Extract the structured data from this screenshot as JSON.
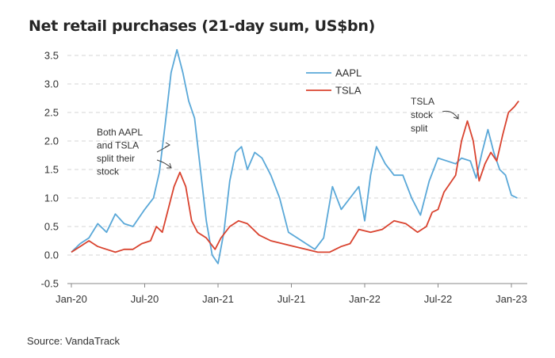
{
  "chart_data": {
    "type": "line",
    "title": "Net retail purchases (21-day sum, US$bn)",
    "source": "Source: VandaTrack",
    "y_ticks": [
      "3.5",
      "3.0",
      "2.5",
      "2.0",
      "1.5",
      "1.0",
      "0.5",
      "0.0",
      "-0.5"
    ],
    "x_ticks": [
      "Jan-20",
      "Jul-20",
      "Jan-21",
      "Jul-21",
      "Jan-22",
      "Jul-22",
      "Jan-23"
    ],
    "ylim": [
      -0.5,
      3.6
    ],
    "grid": true,
    "legend_position": "top-center",
    "series": [
      {
        "name": "AAPL",
        "color": "#5AA8D8",
        "points": [
          [
            2020.0,
            0.05
          ],
          [
            2020.06,
            0.2
          ],
          [
            2020.12,
            0.3
          ],
          [
            2020.18,
            0.55
          ],
          [
            2020.24,
            0.4
          ],
          [
            2020.3,
            0.72
          ],
          [
            2020.36,
            0.55
          ],
          [
            2020.42,
            0.5
          ],
          [
            2020.5,
            0.8
          ],
          [
            2020.56,
            1.0
          ],
          [
            2020.6,
            1.45
          ],
          [
            2020.64,
            2.3
          ],
          [
            2020.68,
            3.2
          ],
          [
            2020.72,
            3.6
          ],
          [
            2020.76,
            3.2
          ],
          [
            2020.8,
            2.7
          ],
          [
            2020.84,
            2.4
          ],
          [
            2020.88,
            1.5
          ],
          [
            2020.92,
            0.6
          ],
          [
            2020.96,
            0.0
          ],
          [
            2021.0,
            -0.15
          ],
          [
            2021.04,
            0.4
          ],
          [
            2021.08,
            1.3
          ],
          [
            2021.12,
            1.8
          ],
          [
            2021.16,
            1.9
          ],
          [
            2021.2,
            1.5
          ],
          [
            2021.25,
            1.8
          ],
          [
            2021.3,
            1.7
          ],
          [
            2021.36,
            1.4
          ],
          [
            2021.42,
            1.0
          ],
          [
            2021.48,
            0.4
          ],
          [
            2021.54,
            0.3
          ],
          [
            2021.6,
            0.2
          ],
          [
            2021.66,
            0.1
          ],
          [
            2021.72,
            0.3
          ],
          [
            2021.78,
            1.2
          ],
          [
            2021.84,
            0.8
          ],
          [
            2021.9,
            1.0
          ],
          [
            2021.96,
            1.2
          ],
          [
            2022.0,
            0.6
          ],
          [
            2022.04,
            1.4
          ],
          [
            2022.08,
            1.9
          ],
          [
            2022.14,
            1.6
          ],
          [
            2022.2,
            1.4
          ],
          [
            2022.26,
            1.4
          ],
          [
            2022.32,
            1.0
          ],
          [
            2022.38,
            0.7
          ],
          [
            2022.44,
            1.3
          ],
          [
            2022.5,
            1.7
          ],
          [
            2022.56,
            1.65
          ],
          [
            2022.62,
            1.6
          ],
          [
            2022.66,
            1.7
          ],
          [
            2022.72,
            1.65
          ],
          [
            2022.76,
            1.35
          ],
          [
            2022.8,
            1.8
          ],
          [
            2022.84,
            2.2
          ],
          [
            2022.88,
            1.8
          ],
          [
            2022.92,
            1.5
          ],
          [
            2022.96,
            1.4
          ],
          [
            2023.0,
            1.05
          ],
          [
            2023.04,
            1.0
          ]
        ]
      },
      {
        "name": "TSLA",
        "color": "#D9432F",
        "points": [
          [
            2020.0,
            0.05
          ],
          [
            2020.06,
            0.15
          ],
          [
            2020.12,
            0.25
          ],
          [
            2020.18,
            0.15
          ],
          [
            2020.24,
            0.1
          ],
          [
            2020.3,
            0.05
          ],
          [
            2020.36,
            0.1
          ],
          [
            2020.42,
            0.1
          ],
          [
            2020.48,
            0.2
          ],
          [
            2020.54,
            0.25
          ],
          [
            2020.58,
            0.5
          ],
          [
            2020.62,
            0.4
          ],
          [
            2020.66,
            0.8
          ],
          [
            2020.7,
            1.2
          ],
          [
            2020.74,
            1.45
          ],
          [
            2020.78,
            1.2
          ],
          [
            2020.82,
            0.6
          ],
          [
            2020.86,
            0.4
          ],
          [
            2020.92,
            0.3
          ],
          [
            2020.98,
            0.1
          ],
          [
            2021.02,
            0.3
          ],
          [
            2021.08,
            0.5
          ],
          [
            2021.14,
            0.6
          ],
          [
            2021.2,
            0.55
          ],
          [
            2021.28,
            0.35
          ],
          [
            2021.36,
            0.25
          ],
          [
            2021.44,
            0.2
          ],
          [
            2021.52,
            0.15
          ],
          [
            2021.6,
            0.1
          ],
          [
            2021.68,
            0.05
          ],
          [
            2021.76,
            0.05
          ],
          [
            2021.84,
            0.15
          ],
          [
            2021.9,
            0.2
          ],
          [
            2021.96,
            0.45
          ],
          [
            2022.04,
            0.4
          ],
          [
            2022.12,
            0.45
          ],
          [
            2022.2,
            0.6
          ],
          [
            2022.28,
            0.55
          ],
          [
            2022.36,
            0.4
          ],
          [
            2022.42,
            0.5
          ],
          [
            2022.46,
            0.75
          ],
          [
            2022.5,
            0.8
          ],
          [
            2022.54,
            1.1
          ],
          [
            2022.58,
            1.25
          ],
          [
            2022.62,
            1.4
          ],
          [
            2022.66,
            2.0
          ],
          [
            2022.7,
            2.35
          ],
          [
            2022.74,
            2.0
          ],
          [
            2022.78,
            1.3
          ],
          [
            2022.82,
            1.6
          ],
          [
            2022.86,
            1.8
          ],
          [
            2022.9,
            1.65
          ],
          [
            2022.94,
            2.1
          ],
          [
            2022.98,
            2.5
          ],
          [
            2023.02,
            2.6
          ],
          [
            2023.05,
            2.7
          ]
        ]
      }
    ],
    "annotations": [
      {
        "lines": [
          "Both AAPL",
          "and TSLA",
          "split their",
          "stock"
        ]
      },
      {
        "lines": [
          "TSLA",
          "stock",
          "split"
        ]
      }
    ]
  }
}
